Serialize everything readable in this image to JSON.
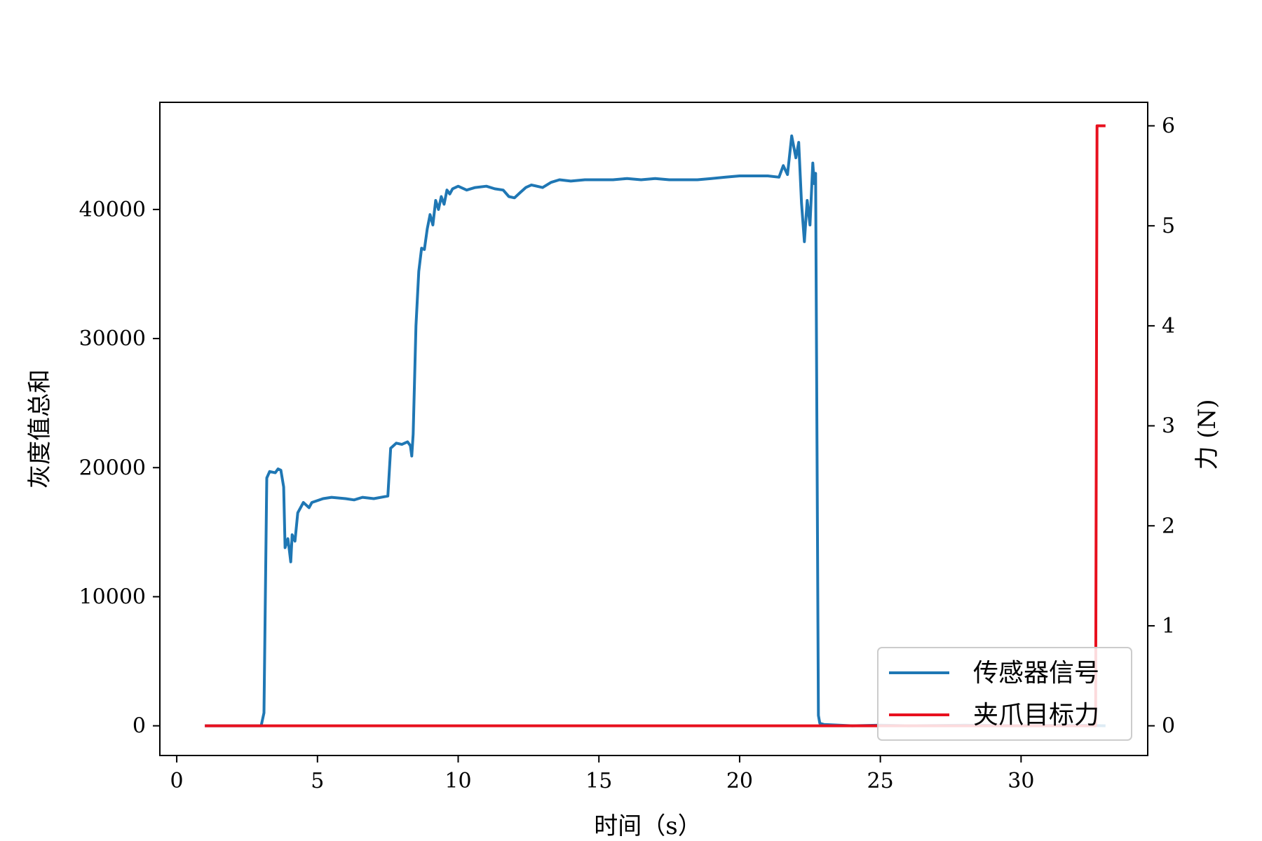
{
  "chart_data": {
    "type": "line",
    "xlabel": "时间（s）",
    "ylabel_left": "灰度值总和",
    "ylabel_right": "力 (N)",
    "xlim": [
      -0.6,
      34.5
    ],
    "ylim_left": [
      -2300,
      48300
    ],
    "ylim_right": [
      -0.297,
      6.235
    ],
    "x_ticks": [
      0,
      5,
      10,
      15,
      20,
      25,
      30
    ],
    "y_left_ticks": [
      0,
      10000,
      20000,
      30000,
      40000
    ],
    "y_right_ticks": [
      0,
      1,
      2,
      3,
      4,
      5,
      6
    ],
    "grid": false,
    "legend_position": "lower-right",
    "series": [
      {
        "name": "传感器信号",
        "axis": "left",
        "color": "#1f77b4",
        "points": [
          [
            1.0,
            0
          ],
          [
            2.0,
            0
          ],
          [
            3.0,
            0
          ],
          [
            3.1,
            1000
          ],
          [
            3.2,
            19200
          ],
          [
            3.3,
            19700
          ],
          [
            3.5,
            19600
          ],
          [
            3.6,
            19900
          ],
          [
            3.7,
            19800
          ],
          [
            3.8,
            18500
          ],
          [
            3.85,
            13800
          ],
          [
            3.95,
            14500
          ],
          [
            4.0,
            13600
          ],
          [
            4.05,
            12700
          ],
          [
            4.1,
            14800
          ],
          [
            4.2,
            14300
          ],
          [
            4.3,
            16500
          ],
          [
            4.5,
            17300
          ],
          [
            4.7,
            16900
          ],
          [
            4.8,
            17300
          ],
          [
            5.2,
            17600
          ],
          [
            5.5,
            17700
          ],
          [
            6.0,
            17600
          ],
          [
            6.3,
            17500
          ],
          [
            6.6,
            17700
          ],
          [
            7.0,
            17600
          ],
          [
            7.5,
            17800
          ],
          [
            7.6,
            21500
          ],
          [
            7.8,
            21900
          ],
          [
            8.0,
            21800
          ],
          [
            8.2,
            22000
          ],
          [
            8.3,
            21700
          ],
          [
            8.35,
            20900
          ],
          [
            8.4,
            22600
          ],
          [
            8.5,
            31000
          ],
          [
            8.6,
            35200
          ],
          [
            8.7,
            37000
          ],
          [
            8.8,
            36900
          ],
          [
            8.9,
            38500
          ],
          [
            9.0,
            39600
          ],
          [
            9.1,
            38800
          ],
          [
            9.2,
            40700
          ],
          [
            9.3,
            40000
          ],
          [
            9.4,
            41000
          ],
          [
            9.5,
            40400
          ],
          [
            9.6,
            41500
          ],
          [
            9.7,
            41200
          ],
          [
            9.8,
            41600
          ],
          [
            10.0,
            41800
          ],
          [
            10.3,
            41500
          ],
          [
            10.6,
            41700
          ],
          [
            11.0,
            41800
          ],
          [
            11.3,
            41600
          ],
          [
            11.6,
            41500
          ],
          [
            11.8,
            41000
          ],
          [
            12.0,
            40900
          ],
          [
            12.2,
            41300
          ],
          [
            12.4,
            41700
          ],
          [
            12.6,
            41900
          ],
          [
            13.0,
            41700
          ],
          [
            13.3,
            42100
          ],
          [
            13.6,
            42300
          ],
          [
            14.0,
            42200
          ],
          [
            14.5,
            42300
          ],
          [
            15.0,
            42300
          ],
          [
            15.5,
            42300
          ],
          [
            16.0,
            42400
          ],
          [
            16.5,
            42300
          ],
          [
            17.0,
            42400
          ],
          [
            17.5,
            42300
          ],
          [
            18.0,
            42300
          ],
          [
            18.5,
            42300
          ],
          [
            19.0,
            42400
          ],
          [
            19.5,
            42500
          ],
          [
            20.0,
            42600
          ],
          [
            20.5,
            42600
          ],
          [
            21.0,
            42600
          ],
          [
            21.4,
            42500
          ],
          [
            21.55,
            43400
          ],
          [
            21.7,
            42700
          ],
          [
            21.85,
            45700
          ],
          [
            22.0,
            44000
          ],
          [
            22.1,
            45200
          ],
          [
            22.2,
            40500
          ],
          [
            22.3,
            37500
          ],
          [
            22.4,
            40700
          ],
          [
            22.5,
            38800
          ],
          [
            22.6,
            43600
          ],
          [
            22.65,
            42000
          ],
          [
            22.7,
            42800
          ],
          [
            22.8,
            800
          ],
          [
            22.85,
            200
          ],
          [
            23.0,
            100
          ],
          [
            24.0,
            0
          ],
          [
            25.0,
            50
          ],
          [
            26.0,
            0
          ],
          [
            28.0,
            50
          ],
          [
            30.0,
            0
          ],
          [
            32.0,
            50
          ],
          [
            33.0,
            0
          ]
        ]
      },
      {
        "name": "夹爪目标力",
        "axis": "right",
        "color": "#e8101e",
        "points": [
          [
            1.0,
            0
          ],
          [
            32.65,
            0
          ],
          [
            32.7,
            6
          ],
          [
            33.0,
            6
          ]
        ]
      }
    ]
  }
}
